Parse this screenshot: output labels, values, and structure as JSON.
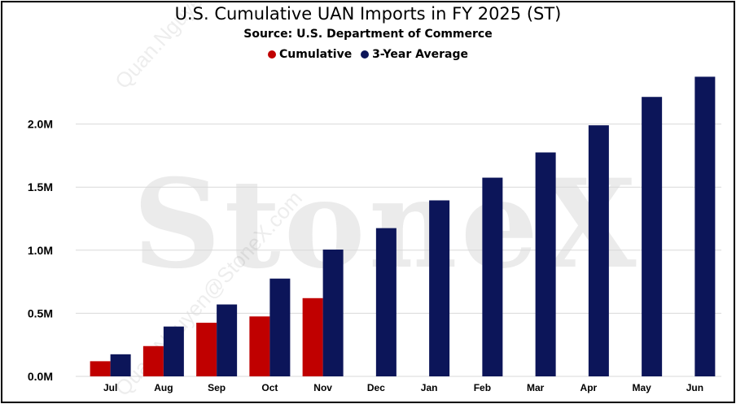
{
  "chart_data": {
    "type": "bar",
    "title": "U.S. Cumulative UAN Imports in FY 2025 (ST)",
    "subtitle": "Source: U.S. Department of Commerce",
    "categories": [
      "Jul",
      "Aug",
      "Sep",
      "Oct",
      "Nov",
      "Dec",
      "Jan",
      "Feb",
      "Mar",
      "Apr",
      "May",
      "Jun"
    ],
    "series": [
      {
        "name": "Cumulative",
        "color": "#C00000",
        "values": [
          120000,
          240000,
          425000,
          475000,
          620000,
          null,
          null,
          null,
          null,
          null,
          null,
          null
        ]
      },
      {
        "name": "3-Year Average",
        "color": "#0C1559",
        "values": [
          175000,
          395000,
          570000,
          775000,
          1005000,
          1175000,
          1395000,
          1575000,
          1775000,
          1990000,
          2215000,
          2375000
        ]
      }
    ],
    "yticks": [
      "0.0M",
      "0.5M",
      "1.0M",
      "1.5M",
      "2.0M"
    ],
    "ylim": [
      0,
      2500000
    ],
    "grid": true,
    "legend_position": "top"
  },
  "watermark": {
    "brand": "StoneX",
    "credit": "Quan.Nguyen@StoneX.com"
  }
}
